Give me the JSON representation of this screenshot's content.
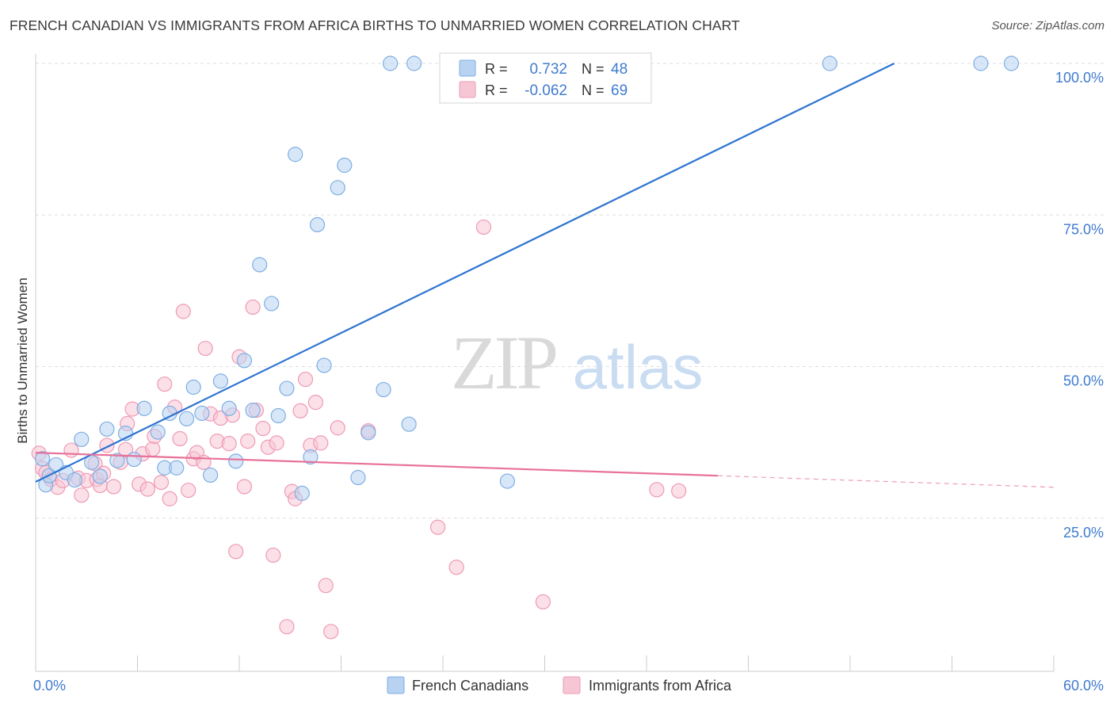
{
  "header": {
    "title": "FRENCH CANADIAN VS IMMIGRANTS FROM AFRICA BIRTHS TO UNMARRIED WOMEN CORRELATION CHART",
    "source": "Source: ZipAtlas.com"
  },
  "watermark": {
    "part1": "ZIP",
    "part2": "atlas"
  },
  "legend_top": {
    "rows": [
      {
        "r_label": "R =",
        "r_value": "0.732",
        "n_label": "N =",
        "n_value": "48"
      },
      {
        "r_label": "R =",
        "r_value": "-0.062",
        "n_label": "N =",
        "n_value": "69"
      }
    ]
  },
  "legend_bottom": {
    "items": [
      {
        "label": "French Canadians"
      },
      {
        "label": "Immigrants from Africa"
      }
    ]
  },
  "colors": {
    "blue_fill": "#b8d3f2",
    "blue_stroke": "#7eaee3",
    "blue_line": "#2e74d1",
    "pink_fill": "#f7c6d5",
    "pink_stroke": "#ee9ab5",
    "pink_line": "#e8719a",
    "value_text": "#3f7bd0",
    "grid": "#dddddd"
  },
  "chart_data": {
    "type": "scatter",
    "title": "FRENCH CANADIAN VS IMMIGRANTS FROM AFRICA BIRTHS TO UNMARRIED WOMEN CORRELATION CHART",
    "xlabel": "",
    "ylabel": "Births to Unmarried Women",
    "xlim": [
      0,
      60
    ],
    "ylim": [
      0,
      100
    ],
    "x_tick_labels": [
      "0.0%",
      "60.0%"
    ],
    "y_tick_labels": [
      "25.0%",
      "50.0%",
      "75.0%",
      "100.0%"
    ],
    "y_ticks": [
      25,
      50,
      75,
      100
    ],
    "grid": "horizontal dashed",
    "legend_position": "top-center",
    "series": [
      {
        "name": "French Canadians",
        "r": 0.732,
        "n": 48,
        "trend": {
          "x": [
            0,
            50.6
          ],
          "y": [
            31.0,
            100.0
          ],
          "dashed_after": null
        },
        "points": [
          [
            0.4,
            34.8
          ],
          [
            0.6,
            30.5
          ],
          [
            0.8,
            32.0
          ],
          [
            1.2,
            33.8
          ],
          [
            1.8,
            32.5
          ],
          [
            2.3,
            31.3
          ],
          [
            2.7,
            38.0
          ],
          [
            3.3,
            34.2
          ],
          [
            3.8,
            31.9
          ],
          [
            4.2,
            39.7
          ],
          [
            4.8,
            34.5
          ],
          [
            5.3,
            39.0
          ],
          [
            5.8,
            34.7
          ],
          [
            6.4,
            43.1
          ],
          [
            7.2,
            39.2
          ],
          [
            7.6,
            33.3
          ],
          [
            7.9,
            42.3
          ],
          [
            8.3,
            33.3
          ],
          [
            8.9,
            41.4
          ],
          [
            9.3,
            46.6
          ],
          [
            9.8,
            42.3
          ],
          [
            10.3,
            32.1
          ],
          [
            10.9,
            47.6
          ],
          [
            11.4,
            43.1
          ],
          [
            11.8,
            34.4
          ],
          [
            12.3,
            51.0
          ],
          [
            12.8,
            42.8
          ],
          [
            13.2,
            66.8
          ],
          [
            13.9,
            60.4
          ],
          [
            14.3,
            41.9
          ],
          [
            14.8,
            46.4
          ],
          [
            15.3,
            85.0
          ],
          [
            15.7,
            29.1
          ],
          [
            16.2,
            35.1
          ],
          [
            16.6,
            73.4
          ],
          [
            17.0,
            50.2
          ],
          [
            17.8,
            79.5
          ],
          [
            18.2,
            83.2
          ],
          [
            19.0,
            31.7
          ],
          [
            19.6,
            39.1
          ],
          [
            20.5,
            46.2
          ],
          [
            20.9,
            100.0
          ],
          [
            22.0,
            40.5
          ],
          [
            22.3,
            100.0
          ],
          [
            27.8,
            31.1
          ],
          [
            46.8,
            100.0
          ],
          [
            55.7,
            100.0
          ],
          [
            57.5,
            100.0
          ]
        ]
      },
      {
        "name": "Immigrants from Africa",
        "r": -0.062,
        "n": 69,
        "trend": {
          "x": [
            0,
            40.2
          ],
          "y": [
            35.8,
            32.0
          ],
          "dashed_to": [
            60.0,
            30.1
          ]
        },
        "points": [
          [
            0.2,
            35.7
          ],
          [
            0.4,
            33.2
          ],
          [
            0.6,
            32.5
          ],
          [
            0.9,
            31.4
          ],
          [
            1.3,
            30.1
          ],
          [
            1.6,
            31.2
          ],
          [
            2.1,
            36.2
          ],
          [
            2.5,
            31.6
          ],
          [
            2.7,
            28.8
          ],
          [
            3.0,
            31.2
          ],
          [
            3.5,
            34.0
          ],
          [
            3.6,
            31.4
          ],
          [
            3.8,
            30.4
          ],
          [
            4.0,
            32.4
          ],
          [
            4.2,
            37.0
          ],
          [
            4.6,
            30.2
          ],
          [
            5.0,
            34.2
          ],
          [
            5.3,
            36.3
          ],
          [
            5.4,
            40.6
          ],
          [
            5.7,
            43.0
          ],
          [
            6.1,
            30.6
          ],
          [
            6.3,
            35.6
          ],
          [
            6.6,
            29.8
          ],
          [
            6.9,
            36.4
          ],
          [
            7.0,
            38.5
          ],
          [
            7.4,
            30.9
          ],
          [
            7.6,
            47.1
          ],
          [
            7.9,
            28.2
          ],
          [
            8.2,
            43.3
          ],
          [
            8.5,
            38.1
          ],
          [
            8.7,
            59.1
          ],
          [
            9.0,
            29.6
          ],
          [
            9.3,
            34.8
          ],
          [
            9.5,
            35.8
          ],
          [
            9.9,
            34.2
          ],
          [
            10.0,
            53.0
          ],
          [
            10.3,
            42.2
          ],
          [
            10.7,
            37.7
          ],
          [
            10.9,
            41.5
          ],
          [
            11.4,
            37.3
          ],
          [
            11.6,
            42.0
          ],
          [
            11.8,
            19.5
          ],
          [
            12.0,
            51.6
          ],
          [
            12.3,
            30.2
          ],
          [
            12.5,
            37.7
          ],
          [
            12.8,
            59.8
          ],
          [
            13.0,
            42.8
          ],
          [
            13.4,
            39.8
          ],
          [
            13.7,
            36.7
          ],
          [
            14.0,
            18.9
          ],
          [
            14.2,
            37.4
          ],
          [
            14.8,
            7.1
          ],
          [
            15.1,
            29.4
          ],
          [
            15.3,
            28.2
          ],
          [
            15.6,
            42.7
          ],
          [
            15.9,
            47.9
          ],
          [
            16.2,
            37.0
          ],
          [
            16.5,
            44.1
          ],
          [
            16.8,
            37.4
          ],
          [
            17.1,
            13.9
          ],
          [
            17.4,
            6.3
          ],
          [
            17.8,
            39.9
          ],
          [
            19.6,
            39.4
          ],
          [
            23.7,
            23.5
          ],
          [
            24.8,
            16.9
          ],
          [
            26.4,
            73.0
          ],
          [
            29.9,
            11.2
          ],
          [
            36.6,
            29.7
          ],
          [
            37.9,
            29.5
          ]
        ]
      }
    ]
  }
}
